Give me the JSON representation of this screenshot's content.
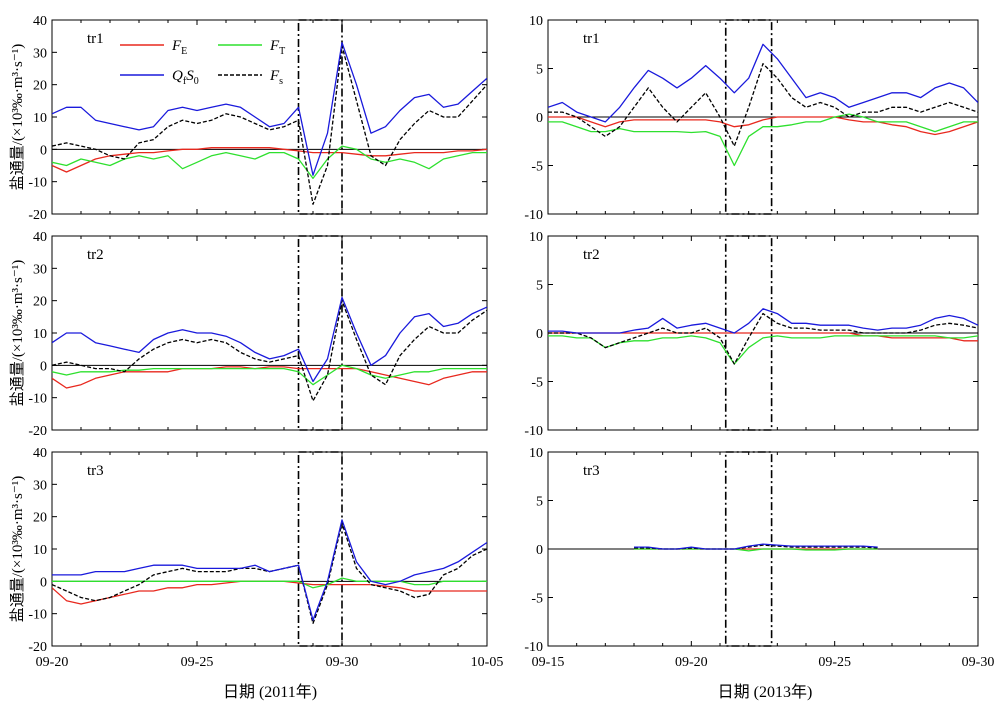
{
  "figure": {
    "y_label": "盐通量/(×10³‰·m³·s⁻¹)",
    "left_x_label": "日期 (2011年)",
    "right_x_label": "日期 (2013年)"
  },
  "legend": {
    "items": [
      {
        "name": "F",
        "sub": "E",
        "color": "#e8281e",
        "dash": false
      },
      {
        "name": "F",
        "sub": "T",
        "color": "#2ee02e",
        "dash": false
      },
      {
        "name": "Q",
        "sub": "f",
        "extra": "S",
        "extra_sub": "0",
        "color": "#1a1adc",
        "dash": false
      },
      {
        "name": "F",
        "sub": "s",
        "color": "#000000",
        "dash": true
      }
    ]
  },
  "chart_data": [
    {
      "type": "line",
      "panel": "left-tr1",
      "label": "tr1",
      "xlim": [
        0,
        15
      ],
      "ylim": [
        -20,
        40
      ],
      "yticks": [
        -20,
        -10,
        0,
        10,
        20,
        30,
        40
      ],
      "xticks": [
        0,
        5,
        10,
        15
      ],
      "xticklabels": [
        "09-20",
        "09-25",
        "09-30",
        "10-05"
      ],
      "highlight": [
        8.5,
        10
      ],
      "x": [
        0,
        0.5,
        1,
        1.5,
        2,
        2.5,
        3,
        3.5,
        4,
        4.5,
        5,
        5.5,
        6,
        6.5,
        7,
        7.5,
        8,
        8.5,
        9,
        9.5,
        10,
        10.5,
        11,
        11.5,
        12,
        12.5,
        13,
        13.5,
        14,
        14.5,
        15
      ],
      "series": [
        {
          "name": "FE",
          "color": "#e8281e",
          "values": [
            -5,
            -7,
            -5,
            -3,
            -2,
            -1.5,
            -1,
            -1,
            -0.5,
            0,
            0,
            0.5,
            0.5,
            0.5,
            0.5,
            0.5,
            0,
            -0.5,
            -1,
            -1,
            -1,
            -1.5,
            -2,
            -2,
            -1.5,
            -1,
            -1,
            -1,
            -0.5,
            -0.5,
            0
          ]
        },
        {
          "name": "FT",
          "color": "#2ee02e",
          "values": [
            -4,
            -5,
            -3,
            -4,
            -5,
            -3,
            -2,
            -3,
            -2,
            -6,
            -4,
            -2,
            -1,
            -2,
            -3,
            -1,
            -1,
            -3,
            -9,
            -3,
            1,
            0,
            -3,
            -4,
            -3,
            -4,
            -6,
            -3,
            -2,
            -1,
            -1
          ]
        },
        {
          "name": "QfS0",
          "color": "#1a1adc",
          "values": [
            11,
            13,
            13,
            9,
            8,
            7,
            6,
            7,
            12,
            13,
            12,
            13,
            14,
            13,
            10,
            7,
            8,
            13,
            -8,
            5,
            33,
            20,
            5,
            7,
            12,
            16,
            17,
            13,
            14,
            18,
            22
          ]
        },
        {
          "name": "Fs",
          "color": "#000000",
          "values": [
            1,
            2,
            1,
            0,
            -2,
            -3,
            2,
            3,
            7,
            9,
            8,
            9,
            11,
            10,
            8,
            6,
            7,
            9,
            -17,
            -5,
            32,
            15,
            -2,
            -5,
            3,
            8,
            12,
            10,
            10,
            15,
            20
          ]
        }
      ]
    },
    {
      "type": "line",
      "panel": "left-tr2",
      "label": "tr2",
      "xlim": [
        0,
        15
      ],
      "ylim": [
        -20,
        40
      ],
      "yticks": [
        -20,
        -10,
        0,
        10,
        20,
        30,
        40
      ],
      "xticks": [
        0,
        5,
        10,
        15
      ],
      "xticklabels": [
        "09-20",
        "09-25",
        "09-30",
        "10-05"
      ],
      "highlight": [
        8.5,
        10
      ],
      "x": [
        0,
        0.5,
        1,
        1.5,
        2,
        2.5,
        3,
        3.5,
        4,
        4.5,
        5,
        5.5,
        6,
        6.5,
        7,
        7.5,
        8,
        8.5,
        9,
        9.5,
        10,
        10.5,
        11,
        11.5,
        12,
        12.5,
        13,
        13.5,
        14,
        14.5,
        15
      ],
      "series": [
        {
          "name": "FE",
          "color": "#e8281e",
          "values": [
            -4,
            -7,
            -6,
            -4,
            -3,
            -2,
            -2,
            -2,
            -2,
            -1,
            -1,
            -1,
            -0.5,
            -0.5,
            -1,
            -0.5,
            -0.5,
            -1,
            -1,
            -1,
            -1,
            -1,
            -2,
            -3,
            -4,
            -5,
            -6,
            -4,
            -3,
            -2,
            -2
          ]
        },
        {
          "name": "FT",
          "color": "#2ee02e",
          "values": [
            -2,
            -3,
            -2,
            -2,
            -2,
            -1.5,
            -1.5,
            -1,
            -1,
            -1,
            -1,
            -1,
            -1,
            -1,
            -1,
            -1,
            -1,
            -2,
            -6,
            -3,
            0,
            -1,
            -3,
            -4,
            -3,
            -2,
            -2,
            -1,
            -1,
            -1,
            -1
          ]
        },
        {
          "name": "QfS0",
          "color": "#1a1adc",
          "values": [
            7,
            10,
            10,
            7,
            6,
            5,
            4,
            8,
            10,
            11,
            10,
            10,
            9,
            7,
            4,
            2,
            3,
            5,
            -5,
            2,
            21,
            10,
            0,
            3,
            10,
            15,
            16,
            12,
            13,
            16,
            18
          ]
        },
        {
          "name": "Fs",
          "color": "#000000",
          "values": [
            0,
            1,
            0,
            -1,
            -1,
            -2,
            2,
            5,
            7,
            8,
            7,
            8,
            7,
            4,
            2,
            1,
            2,
            3,
            -11,
            -3,
            20,
            8,
            -3,
            -6,
            3,
            8,
            12,
            10,
            10,
            14,
            17
          ]
        }
      ]
    },
    {
      "type": "line",
      "panel": "left-tr3",
      "label": "tr3",
      "xlim": [
        0,
        15
      ],
      "ylim": [
        -20,
        40
      ],
      "yticks": [
        -20,
        -10,
        0,
        10,
        20,
        30,
        40
      ],
      "xticks": [
        0,
        5,
        10,
        15
      ],
      "xticklabels": [
        "09-20",
        "09-25",
        "09-30",
        "10-05"
      ],
      "highlight": [
        8.5,
        10
      ],
      "x": [
        0,
        0.5,
        1,
        1.5,
        2,
        2.5,
        3,
        3.5,
        4,
        4.5,
        5,
        5.5,
        6,
        6.5,
        7,
        7.5,
        8,
        8.5,
        9,
        9.5,
        10,
        10.5,
        11,
        11.5,
        12,
        12.5,
        13,
        13.5,
        14,
        14.5,
        15
      ],
      "series": [
        {
          "name": "FE",
          "color": "#e8281e",
          "values": [
            -2,
            -6,
            -7,
            -6,
            -5,
            -4,
            -3,
            -3,
            -2,
            -2,
            -1,
            -1,
            -0.5,
            0,
            0,
            0,
            0,
            -0.5,
            -1,
            -1,
            -1,
            -1,
            -1,
            -1.5,
            -2,
            -3,
            -3,
            -3,
            -3,
            -3,
            -3
          ]
        },
        {
          "name": "FT",
          "color": "#2ee02e",
          "values": [
            0,
            0,
            0,
            0,
            0,
            0,
            0,
            0,
            0,
            0,
            0,
            0,
            0,
            0,
            0,
            0,
            0,
            0,
            -2,
            -1,
            1,
            0,
            0,
            0,
            0,
            -1,
            -1,
            0,
            0,
            0,
            0
          ]
        },
        {
          "name": "QfS0",
          "color": "#1a1adc",
          "values": [
            2,
            2,
            2,
            3,
            3,
            3,
            4,
            5,
            5,
            5,
            4,
            4,
            4,
            4,
            5,
            3,
            4,
            5,
            -12,
            0,
            19,
            6,
            0,
            -1,
            0,
            2,
            3,
            4,
            6,
            9,
            12
          ]
        },
        {
          "name": "Fs",
          "color": "#000000",
          "values": [
            -1,
            -3,
            -5,
            -6,
            -5,
            -3,
            -1,
            2,
            3,
            4,
            3,
            3,
            3,
            4,
            4,
            3,
            4,
            5,
            -13,
            -1,
            18,
            4,
            -1,
            -2,
            -3,
            -5,
            -4,
            2,
            4,
            8,
            10
          ]
        }
      ]
    },
    {
      "type": "line",
      "panel": "right-tr1",
      "label": "tr1",
      "xlim": [
        0,
        15
      ],
      "ylim": [
        -10,
        10
      ],
      "yticks": [
        -10,
        -5,
        0,
        5,
        10
      ],
      "xticks": [
        0,
        5,
        10,
        15
      ],
      "xticklabels": [
        "09-15",
        "09-20",
        "09-25",
        "09-30"
      ],
      "highlight": [
        6.2,
        7.8
      ],
      "x": [
        0,
        0.5,
        1,
        1.5,
        2,
        2.5,
        3,
        3.5,
        4,
        4.5,
        5,
        5.5,
        6,
        6.5,
        7,
        7.5,
        8,
        8.5,
        9,
        9.5,
        10,
        10.5,
        11,
        11.5,
        12,
        12.5,
        13,
        13.5,
        14,
        14.5,
        15
      ],
      "series": [
        {
          "name": "FE",
          "color": "#e8281e",
          "values": [
            0,
            0,
            0,
            -0.5,
            -1,
            -0.5,
            -0.3,
            -0.3,
            -0.3,
            -0.3,
            -0.3,
            -0.3,
            -0.5,
            -1,
            -0.8,
            -0.3,
            0,
            0,
            0,
            0,
            0,
            -0.3,
            -0.5,
            -0.5,
            -0.8,
            -1,
            -1.5,
            -1.8,
            -1.5,
            -1,
            -0.5
          ]
        },
        {
          "name": "FT",
          "color": "#2ee02e",
          "values": [
            -0.5,
            -0.5,
            -1,
            -1.5,
            -1.5,
            -1.2,
            -1.5,
            -1.5,
            -1.5,
            -1.5,
            -1.6,
            -1.5,
            -2,
            -5,
            -2,
            -1,
            -1,
            -0.8,
            -0.5,
            -0.5,
            0,
            0.3,
            0,
            -0.5,
            -0.5,
            -0.5,
            -1,
            -1.5,
            -1,
            -0.5,
            -0.5
          ]
        },
        {
          "name": "QfS0",
          "color": "#1a1adc",
          "values": [
            1,
            1.5,
            0.5,
            0,
            -0.5,
            1,
            3,
            4.8,
            4,
            3,
            4,
            5.3,
            4,
            2.5,
            4,
            7.5,
            6,
            4,
            2,
            2.5,
            2,
            1,
            1.5,
            2,
            2.5,
            2.5,
            2,
            3,
            3.5,
            3,
            1.5
          ]
        },
        {
          "name": "Fs",
          "color": "#000000",
          "values": [
            0.5,
            0.5,
            0,
            -1,
            -2,
            -1,
            1,
            3,
            1,
            -0.5,
            1,
            2.5,
            0,
            -3,
            1,
            5.5,
            4,
            2,
            1,
            1.5,
            1,
            0,
            0.5,
            0.5,
            1,
            1,
            0.5,
            1,
            1.5,
            1,
            0.5
          ]
        }
      ]
    },
    {
      "type": "line",
      "panel": "right-tr2",
      "label": "tr2",
      "xlim": [
        0,
        15
      ],
      "ylim": [
        -10,
        10
      ],
      "yticks": [
        -10,
        -5,
        0,
        5,
        10
      ],
      "xticks": [
        0,
        5,
        10,
        15
      ],
      "xticklabels": [
        "09-15",
        "09-20",
        "09-25",
        "09-30"
      ],
      "highlight": [
        6.2,
        7.8
      ],
      "x": [
        0,
        0.5,
        1,
        1.5,
        2,
        2.5,
        3,
        3.5,
        4,
        4.5,
        5,
        5.5,
        6,
        6.5,
        7,
        7.5,
        8,
        8.5,
        9,
        9.5,
        10,
        10.5,
        11,
        11.5,
        12,
        12.5,
        13,
        13.5,
        14,
        14.5,
        15
      ],
      "series": [
        {
          "name": "FE",
          "color": "#e8281e",
          "values": [
            0,
            0,
            0,
            0,
            0,
            0,
            0,
            0,
            0,
            0,
            0,
            0,
            0,
            0,
            0,
            0,
            0,
            0,
            0,
            0,
            0,
            0,
            -0.3,
            -0.3,
            -0.5,
            -0.5,
            -0.5,
            -0.5,
            -0.5,
            -0.8,
            -0.8
          ]
        },
        {
          "name": "FT",
          "color": "#2ee02e",
          "values": [
            -0.3,
            -0.3,
            -0.5,
            -0.5,
            -1.5,
            -1,
            -0.8,
            -0.8,
            -0.5,
            -0.5,
            -0.3,
            -0.5,
            -1,
            -3.2,
            -1.5,
            -0.5,
            -0.3,
            -0.5,
            -0.5,
            -0.5,
            -0.3,
            -0.3,
            -0.3,
            -0.3,
            -0.3,
            -0.3,
            -0.3,
            -0.3,
            -0.5,
            -0.5,
            -0.3
          ]
        },
        {
          "name": "QfS0",
          "color": "#1a1adc",
          "values": [
            0.2,
            0.2,
            0,
            0,
            0,
            0,
            0.3,
            0.5,
            1.5,
            0.5,
            0.8,
            1,
            0.5,
            0,
            1,
            2.5,
            2,
            1,
            1,
            0.8,
            0.8,
            0.8,
            0.5,
            0.3,
            0.5,
            0.5,
            0.8,
            1.5,
            1.8,
            1.5,
            0.8
          ]
        },
        {
          "name": "Fs",
          "color": "#000000",
          "values": [
            0,
            0,
            0,
            -0.5,
            -1.5,
            -1,
            -0.5,
            0,
            0.5,
            0,
            0,
            0.5,
            -0.5,
            -3.2,
            -0.5,
            2,
            1,
            0.5,
            0.5,
            0.3,
            0.3,
            0.3,
            0,
            0,
            0,
            0,
            0.3,
            0.8,
            1,
            0.8,
            0.5
          ]
        }
      ]
    },
    {
      "type": "line",
      "panel": "right-tr3",
      "label": "tr3",
      "xlim": [
        0,
        15
      ],
      "ylim": [
        -10,
        10
      ],
      "yticks": [
        -10,
        -5,
        0,
        5,
        10
      ],
      "xticks": [
        0,
        5,
        10,
        15
      ],
      "xticklabels": [
        "09-15",
        "09-20",
        "09-25",
        "09-30"
      ],
      "highlight": [
        6.2,
        7.8
      ],
      "x": [
        3,
        3.5,
        4,
        4.5,
        5,
        5.5,
        6,
        6.5,
        7,
        7.5,
        8,
        8.5,
        9,
        9.5,
        10,
        10.5,
        11,
        11.5
      ],
      "series": [
        {
          "name": "FE",
          "color": "#e8281e",
          "values": [
            0,
            0,
            0,
            0,
            0,
            0,
            0,
            0,
            0,
            0,
            0,
            0,
            0,
            0,
            0,
            0,
            0,
            0
          ]
        },
        {
          "name": "FT",
          "color": "#2ee02e",
          "values": [
            0,
            0,
            0,
            0,
            0,
            0,
            0,
            0,
            -0.2,
            0,
            0,
            0,
            -0.1,
            -0.1,
            -0.1,
            0,
            0,
            0
          ]
        },
        {
          "name": "QfS0",
          "color": "#1a1adc",
          "values": [
            0.2,
            0.2,
            0,
            0,
            0.2,
            0,
            0,
            0,
            0.3,
            0.5,
            0.4,
            0.3,
            0.3,
            0.3,
            0.3,
            0.3,
            0.3,
            0.2
          ]
        },
        {
          "name": "Fs",
          "color": "#000000",
          "values": [
            0.1,
            0.1,
            0,
            0,
            0.1,
            0,
            0,
            0,
            0.2,
            0.4,
            0.3,
            0.2,
            0.2,
            0.2,
            0.2,
            0.2,
            0.2,
            0.1
          ]
        }
      ]
    }
  ]
}
